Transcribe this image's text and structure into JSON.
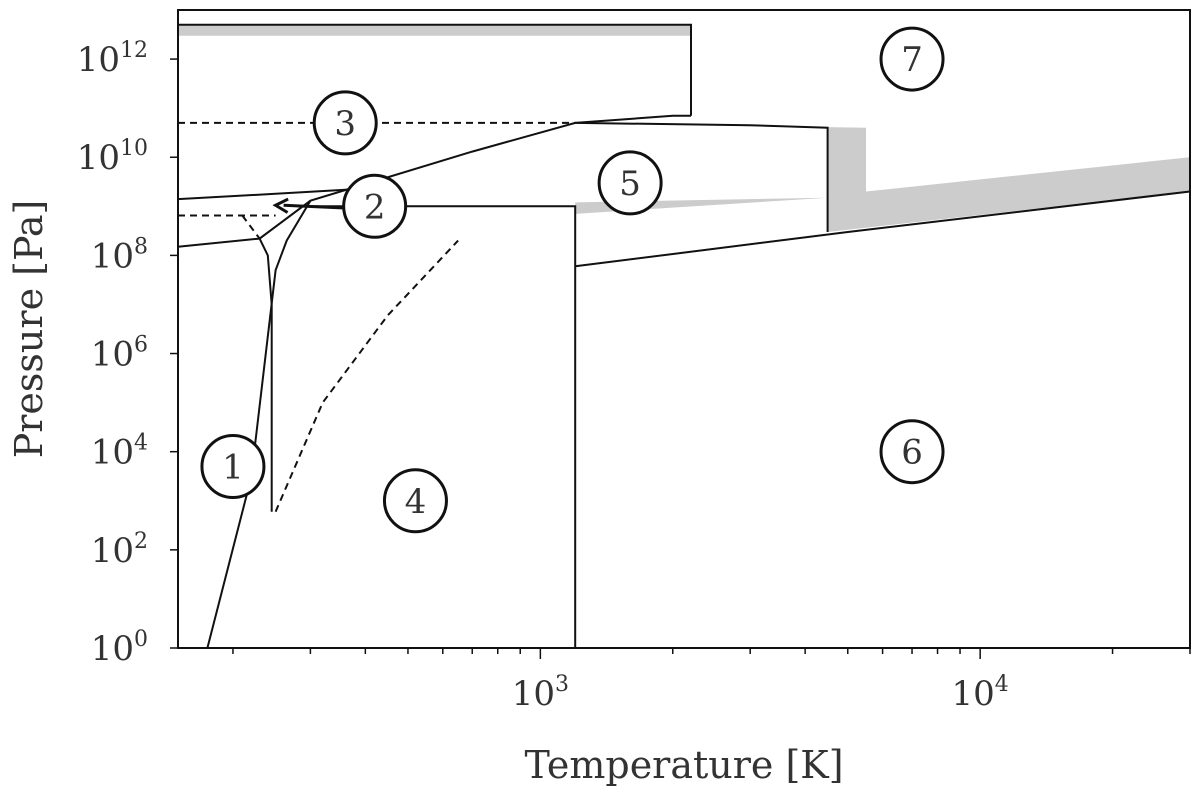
{
  "chart_data": {
    "type": "line",
    "title": "",
    "xlabel": "Temperature [K]",
    "ylabel": "Pressure [Pa]",
    "x_scale": "log",
    "y_scale": "log",
    "xlim": [
      150,
      30000
    ],
    "ylim": [
      1,
      10000000000000.0
    ],
    "grid": false,
    "x_ticks": [
      {
        "value": 1000,
        "base": "10",
        "exp": "3"
      },
      {
        "value": 10000,
        "base": "10",
        "exp": "4"
      }
    ],
    "y_ticks": [
      {
        "value": 1,
        "base": "10",
        "exp": "0"
      },
      {
        "value": 100,
        "base": "10",
        "exp": "2"
      },
      {
        "value": 10000,
        "base": "10",
        "exp": "4"
      },
      {
        "value": 1000000,
        "base": "10",
        "exp": "6"
      },
      {
        "value": 100000000,
        "base": "10",
        "exp": "8"
      },
      {
        "value": 10000000000,
        "base": "10",
        "exp": "10"
      },
      {
        "value": 1000000000000,
        "base": "10",
        "exp": "12"
      }
    ],
    "regions": [
      {
        "label": "1",
        "x": 200,
        "y": 5000
      },
      {
        "label": "2",
        "x": 420,
        "y": 1000000000
      },
      {
        "label": "3",
        "x": 360,
        "y": 50000000000
      },
      {
        "label": "4",
        "x": 520,
        "y": 1000
      },
      {
        "label": "5",
        "x": 1600,
        "y": 3000000000
      },
      {
        "label": "6",
        "x": 7000,
        "y": 10000
      },
      {
        "label": "7",
        "x": 7000,
        "y": 1000000000000
      }
    ],
    "series": [
      {
        "style": "solid",
        "points": [
          [
            150,
            150000000
          ],
          [
            230,
            220000000
          ],
          [
            300,
            1300000000
          ],
          [
            700,
            13000000000
          ],
          [
            1200,
            50000000000
          ],
          [
            2000,
            70000000000
          ],
          [
            2200,
            70000000000
          ]
        ]
      },
      {
        "style": "solid",
        "points": [
          [
            150,
            1400000000
          ],
          [
            250,
            1800000000
          ],
          [
            400,
            2300000000
          ]
        ]
      },
      {
        "style": "solid",
        "points": [
          [
            175,
            1
          ],
          [
            220,
            3000
          ],
          [
            250,
            50000000
          ],
          [
            265,
            200000000
          ],
          [
            300,
            1300000000
          ]
        ]
      },
      {
        "style": "solid",
        "points": [
          [
            245,
            600
          ],
          [
            245,
            10000000
          ],
          [
            240,
            100000000
          ],
          [
            230,
            220000000
          ]
        ]
      },
      {
        "style": "solid",
        "points": [
          [
            150,
            5000000000000
          ],
          [
            2200,
            5000000000000
          ],
          [
            2200,
            70000000000
          ]
        ]
      },
      {
        "style": "solid",
        "points": [
          [
            1200,
            50000000000
          ],
          [
            3000,
            45000000000
          ],
          [
            4500,
            40000000000
          ],
          [
            4500,
            300000000
          ]
        ]
      },
      {
        "style": "solid",
        "points": [
          [
            280,
            1000000000
          ],
          [
            1200,
            1000000000
          ],
          [
            1200,
            1
          ]
        ]
      },
      {
        "style": "solid",
        "points": [
          [
            1200,
            60000000
          ],
          [
            5000,
            300000000
          ],
          [
            30000,
            2000000000
          ]
        ]
      },
      {
        "style": "dashed",
        "points": [
          [
            150,
            50000000000
          ],
          [
            1200,
            50000000000
          ]
        ]
      },
      {
        "style": "dashed",
        "points": [
          [
            150,
            650000000
          ],
          [
            250,
            650000000
          ]
        ]
      },
      {
        "style": "dashed",
        "points": [
          [
            210,
            650000000
          ],
          [
            230,
            220000000
          ]
        ]
      },
      {
        "style": "dashed",
        "points": [
          [
            250,
            600
          ],
          [
            320,
            100000
          ],
          [
            450,
            6000000
          ],
          [
            650,
            200000000
          ]
        ]
      }
    ],
    "bands": [
      {
        "points": [
          [
            150,
            3000000000000
          ],
          [
            2200,
            3000000000000
          ],
          [
            2200,
            5000000000000
          ],
          [
            150,
            5000000000000
          ]
        ]
      },
      {
        "points": [
          [
            1200,
            50000000000
          ],
          [
            5500,
            40000000000
          ],
          [
            5500,
            2000000000
          ],
          [
            30000,
            10000000000
          ],
          [
            30000,
            2000000000
          ],
          [
            4500,
            300000000
          ],
          [
            4500,
            1500000000
          ],
          [
            1200,
            700000000
          ],
          [
            1200,
            1200000000
          ],
          [
            4500,
            1500000000
          ],
          [
            4500,
            40000000000
          ]
        ]
      }
    ],
    "arrows": [
      {
        "from": [
          380,
          900000000
        ],
        "to": [
          250,
          1050000000
        ]
      }
    ]
  }
}
